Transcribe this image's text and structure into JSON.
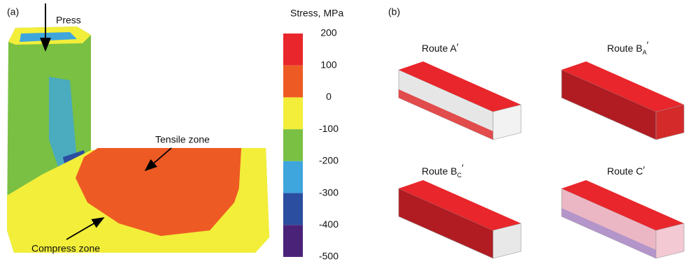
{
  "panel_a": {
    "label": "(a)",
    "annotations": {
      "press": "Press",
      "tensile": "Tensile zone",
      "compress": "Compress zone"
    },
    "colorbar": {
      "title": "Stress, MPa",
      "ticks": [
        200,
        100,
        0,
        -100,
        -200,
        -300,
        -400,
        -500
      ],
      "colors": [
        "#e8262b",
        "#ee5a24",
        "#f2ee3a",
        "#79c043",
        "#3ea6dd",
        "#2b4ea0",
        "#4a2379"
      ]
    }
  },
  "panel_b": {
    "label": "(b)",
    "routes": [
      {
        "name": "Route A",
        "prime": "′"
      },
      {
        "name": "Route B",
        "sub": "A",
        "prime": "′"
      },
      {
        "name": "Route B",
        "sub": "C",
        "prime": "′"
      },
      {
        "name": "Route C",
        "prime": "′"
      }
    ]
  }
}
